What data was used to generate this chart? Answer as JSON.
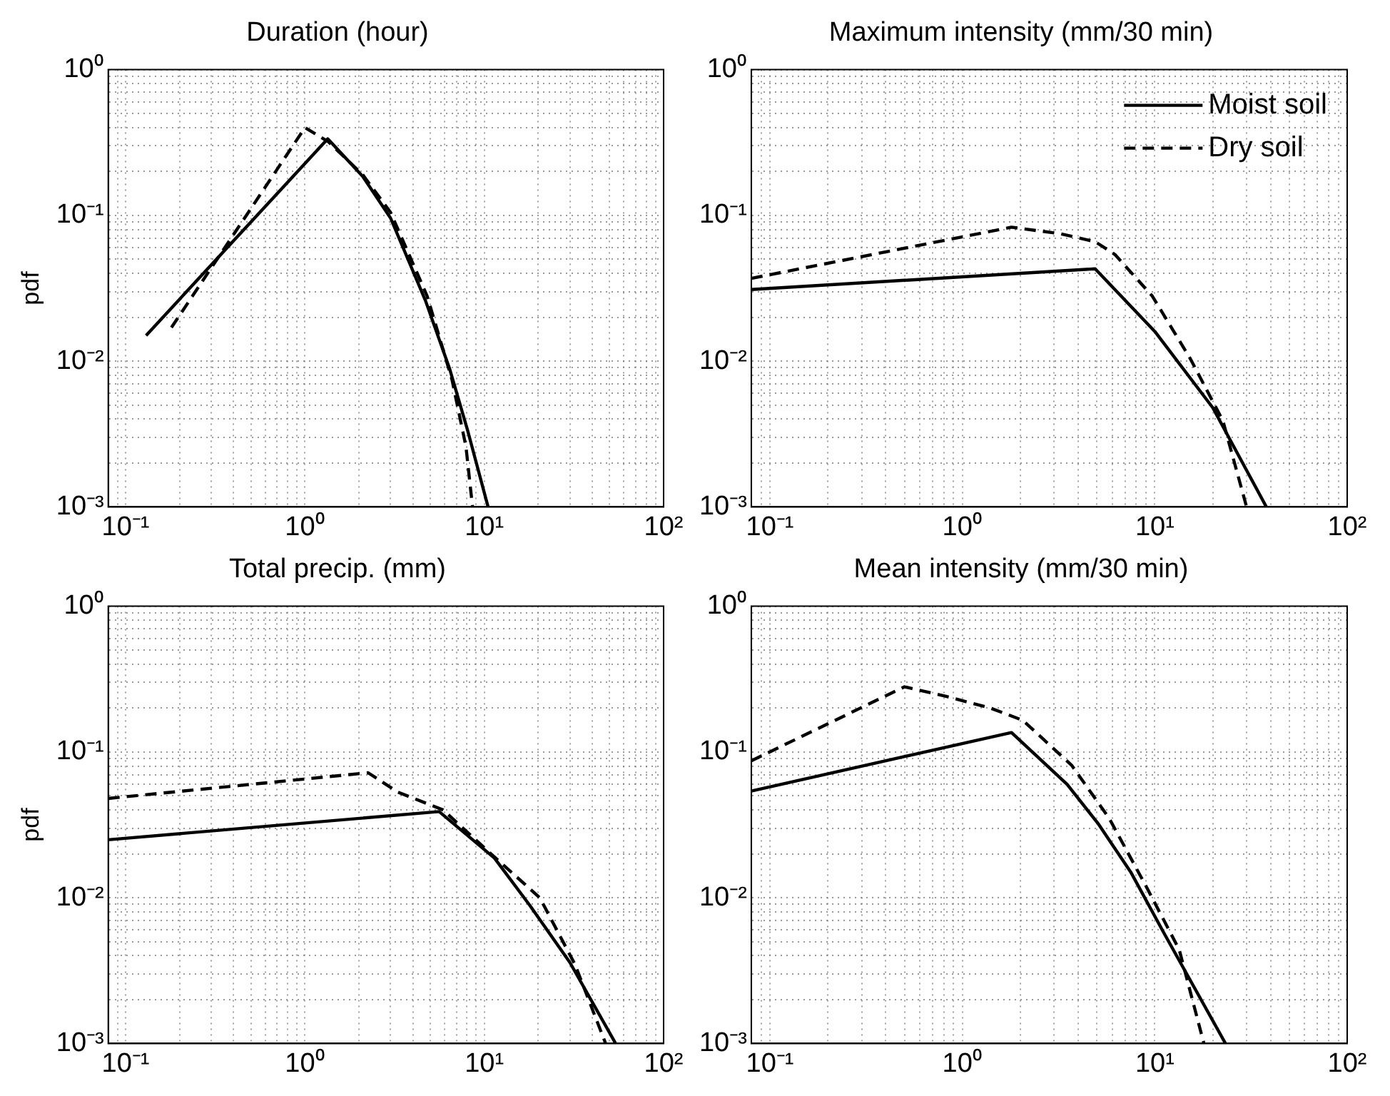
{
  "chart_data": [
    {
      "type": "line",
      "title": "Duration (hour)",
      "ylabel": "pdf",
      "log": "xy",
      "grid": true,
      "marker": "none",
      "legend": false,
      "xlim": [
        0.08,
        100
      ],
      "ylim": [
        0.001,
        1
      ],
      "xticks": [
        {
          "value": 0.09,
          "label": null
        },
        {
          "value": 0.1,
          "label": "10⁻¹"
        },
        {
          "value": 0.2,
          "label": null
        },
        {
          "value": 0.3,
          "label": null
        },
        {
          "value": 0.4,
          "label": null
        },
        {
          "value": 0.5,
          "label": null
        },
        {
          "value": 0.6,
          "label": null
        },
        {
          "value": 0.7,
          "label": null
        },
        {
          "value": 0.8,
          "label": null
        },
        {
          "value": 0.9,
          "label": null
        },
        {
          "value": 1,
          "label": "10⁰"
        },
        {
          "value": 2,
          "label": null
        },
        {
          "value": 3,
          "label": null
        },
        {
          "value": 4,
          "label": null
        },
        {
          "value": 5,
          "label": null
        },
        {
          "value": 6,
          "label": null
        },
        {
          "value": 7,
          "label": null
        },
        {
          "value": 8,
          "label": null
        },
        {
          "value": 9,
          "label": null
        },
        {
          "value": 10,
          "label": "10¹"
        },
        {
          "value": 20,
          "label": null
        },
        {
          "value": 30,
          "label": null
        },
        {
          "value": 40,
          "label": null
        },
        {
          "value": 50,
          "label": null
        },
        {
          "value": 60,
          "label": null
        },
        {
          "value": 70,
          "label": null
        },
        {
          "value": 80,
          "label": null
        },
        {
          "value": 90,
          "label": null
        },
        {
          "value": 100,
          "label": "10²"
        }
      ],
      "yticks": [
        {
          "value": 0.001,
          "label": "10⁻³"
        },
        {
          "value": 0.002,
          "label": null
        },
        {
          "value": 0.003,
          "label": null
        },
        {
          "value": 0.004,
          "label": null
        },
        {
          "value": 0.005,
          "label": null
        },
        {
          "value": 0.006,
          "label": null
        },
        {
          "value": 0.007,
          "label": null
        },
        {
          "value": 0.008,
          "label": null
        },
        {
          "value": 0.009,
          "label": null
        },
        {
          "value": 0.01,
          "label": "10⁻²"
        },
        {
          "value": 0.02,
          "label": null
        },
        {
          "value": 0.03,
          "label": null
        },
        {
          "value": 0.04,
          "label": null
        },
        {
          "value": 0.05,
          "label": null
        },
        {
          "value": 0.06,
          "label": null
        },
        {
          "value": 0.07,
          "label": null
        },
        {
          "value": 0.08,
          "label": null
        },
        {
          "value": 0.09,
          "label": null
        },
        {
          "value": 0.1,
          "label": "10⁻¹"
        },
        {
          "value": 0.2,
          "label": null
        },
        {
          "value": 0.3,
          "label": null
        },
        {
          "value": 0.4,
          "label": null
        },
        {
          "value": 0.5,
          "label": null
        },
        {
          "value": 0.6,
          "label": null
        },
        {
          "value": 0.7,
          "label": null
        },
        {
          "value": 0.8,
          "label": null
        },
        {
          "value": 0.9,
          "label": null
        },
        {
          "value": 1,
          "label": "10⁰"
        }
      ],
      "series": [
        {
          "color": "#000000",
          "line_style": "solid",
          "x": [
            0.13,
            1.34,
            2.1,
            3.0,
            4.7,
            6.4,
            8.1,
            10.5
          ],
          "values": [
            0.015,
            0.335,
            0.185,
            0.096,
            0.026,
            0.0089,
            0.0033,
            0.001
          ]
        },
        {
          "color": "#000000",
          "line_style": "dashed",
          "x": [
            0.18,
            1.0,
            1.35,
            2.1,
            3.0,
            4.8,
            6.6,
            7.9,
            8.6
          ],
          "values": [
            0.017,
            0.4,
            0.32,
            0.19,
            0.105,
            0.028,
            0.0075,
            0.0026,
            0.001
          ]
        }
      ]
    },
    {
      "type": "line",
      "title": "Maximum intensity (mm/30 min)",
      "log": "xy",
      "grid": true,
      "marker": "none",
      "legend": "top right",
      "xlim": [
        0.08,
        100
      ],
      "ylim": [
        0.001,
        1
      ],
      "xticks": [
        {
          "value": 0.09,
          "label": null
        },
        {
          "value": 0.1,
          "label": "10⁻¹"
        },
        {
          "value": 0.2,
          "label": null
        },
        {
          "value": 0.3,
          "label": null
        },
        {
          "value": 0.4,
          "label": null
        },
        {
          "value": 0.5,
          "label": null
        },
        {
          "value": 0.6,
          "label": null
        },
        {
          "value": 0.7,
          "label": null
        },
        {
          "value": 0.8,
          "label": null
        },
        {
          "value": 0.9,
          "label": null
        },
        {
          "value": 1,
          "label": "10⁰"
        },
        {
          "value": 2,
          "label": null
        },
        {
          "value": 3,
          "label": null
        },
        {
          "value": 4,
          "label": null
        },
        {
          "value": 5,
          "label": null
        },
        {
          "value": 6,
          "label": null
        },
        {
          "value": 7,
          "label": null
        },
        {
          "value": 8,
          "label": null
        },
        {
          "value": 9,
          "label": null
        },
        {
          "value": 10,
          "label": "10¹"
        },
        {
          "value": 20,
          "label": null
        },
        {
          "value": 30,
          "label": null
        },
        {
          "value": 40,
          "label": null
        },
        {
          "value": 50,
          "label": null
        },
        {
          "value": 60,
          "label": null
        },
        {
          "value": 70,
          "label": null
        },
        {
          "value": 80,
          "label": null
        },
        {
          "value": 90,
          "label": null
        },
        {
          "value": 100,
          "label": "10²"
        }
      ],
      "yticks": [
        {
          "value": 0.001,
          "label": "10⁻³"
        },
        {
          "value": 0.002,
          "label": null
        },
        {
          "value": 0.003,
          "label": null
        },
        {
          "value": 0.004,
          "label": null
        },
        {
          "value": 0.005,
          "label": null
        },
        {
          "value": 0.006,
          "label": null
        },
        {
          "value": 0.007,
          "label": null
        },
        {
          "value": 0.008,
          "label": null
        },
        {
          "value": 0.009,
          "label": null
        },
        {
          "value": 0.01,
          "label": "10⁻²"
        },
        {
          "value": 0.02,
          "label": null
        },
        {
          "value": 0.03,
          "label": null
        },
        {
          "value": 0.04,
          "label": null
        },
        {
          "value": 0.05,
          "label": null
        },
        {
          "value": 0.06,
          "label": null
        },
        {
          "value": 0.07,
          "label": null
        },
        {
          "value": 0.08,
          "label": null
        },
        {
          "value": 0.09,
          "label": null
        },
        {
          "value": 0.1,
          "label": "10⁻¹"
        },
        {
          "value": 0.2,
          "label": null
        },
        {
          "value": 0.3,
          "label": null
        },
        {
          "value": 0.4,
          "label": null
        },
        {
          "value": 0.5,
          "label": null
        },
        {
          "value": 0.6,
          "label": null
        },
        {
          "value": 0.7,
          "label": null
        },
        {
          "value": 0.8,
          "label": null
        },
        {
          "value": 0.9,
          "label": null
        },
        {
          "value": 1,
          "label": "10⁰"
        }
      ],
      "series": [
        {
          "name": "Moist soil",
          "color": "#000000",
          "line_style": "solid",
          "x": [
            0.08,
            4.9,
            10,
            20,
            38
          ],
          "values": [
            0.031,
            0.043,
            0.016,
            0.0048,
            0.001
          ]
        },
        {
          "name": "Dry soil",
          "color": "#000000",
          "line_style": "dashed",
          "x": [
            0.08,
            1.8,
            3.2,
            4.9,
            6.2,
            9.7,
            15.3,
            22.6,
            30
          ],
          "values": [
            0.037,
            0.083,
            0.075,
            0.066,
            0.054,
            0.028,
            0.0104,
            0.0039,
            0.001
          ]
        }
      ]
    },
    {
      "type": "line",
      "title": "Total precip. (mm)",
      "ylabel": "pdf",
      "log": "xy",
      "grid": true,
      "marker": "none",
      "legend": false,
      "xlim": [
        0.08,
        100
      ],
      "ylim": [
        0.001,
        1
      ],
      "xticks": [
        {
          "value": 0.09,
          "label": null
        },
        {
          "value": 0.1,
          "label": "10⁻¹"
        },
        {
          "value": 0.2,
          "label": null
        },
        {
          "value": 0.3,
          "label": null
        },
        {
          "value": 0.4,
          "label": null
        },
        {
          "value": 0.5,
          "label": null
        },
        {
          "value": 0.6,
          "label": null
        },
        {
          "value": 0.7,
          "label": null
        },
        {
          "value": 0.8,
          "label": null
        },
        {
          "value": 0.9,
          "label": null
        },
        {
          "value": 1,
          "label": "10⁰"
        },
        {
          "value": 2,
          "label": null
        },
        {
          "value": 3,
          "label": null
        },
        {
          "value": 4,
          "label": null
        },
        {
          "value": 5,
          "label": null
        },
        {
          "value": 6,
          "label": null
        },
        {
          "value": 7,
          "label": null
        },
        {
          "value": 8,
          "label": null
        },
        {
          "value": 9,
          "label": null
        },
        {
          "value": 10,
          "label": "10¹"
        },
        {
          "value": 20,
          "label": null
        },
        {
          "value": 30,
          "label": null
        },
        {
          "value": 40,
          "label": null
        },
        {
          "value": 50,
          "label": null
        },
        {
          "value": 60,
          "label": null
        },
        {
          "value": 70,
          "label": null
        },
        {
          "value": 80,
          "label": null
        },
        {
          "value": 90,
          "label": null
        },
        {
          "value": 100,
          "label": "10²"
        }
      ],
      "yticks": [
        {
          "value": 0.001,
          "label": "10⁻³"
        },
        {
          "value": 0.002,
          "label": null
        },
        {
          "value": 0.003,
          "label": null
        },
        {
          "value": 0.004,
          "label": null
        },
        {
          "value": 0.005,
          "label": null
        },
        {
          "value": 0.006,
          "label": null
        },
        {
          "value": 0.007,
          "label": null
        },
        {
          "value": 0.008,
          "label": null
        },
        {
          "value": 0.009,
          "label": null
        },
        {
          "value": 0.01,
          "label": "10⁻²"
        },
        {
          "value": 0.02,
          "label": null
        },
        {
          "value": 0.03,
          "label": null
        },
        {
          "value": 0.04,
          "label": null
        },
        {
          "value": 0.05,
          "label": null
        },
        {
          "value": 0.06,
          "label": null
        },
        {
          "value": 0.07,
          "label": null
        },
        {
          "value": 0.08,
          "label": null
        },
        {
          "value": 0.09,
          "label": null
        },
        {
          "value": 0.1,
          "label": "10⁻¹"
        },
        {
          "value": 0.2,
          "label": null
        },
        {
          "value": 0.3,
          "label": null
        },
        {
          "value": 0.4,
          "label": null
        },
        {
          "value": 0.5,
          "label": null
        },
        {
          "value": 0.6,
          "label": null
        },
        {
          "value": 0.7,
          "label": null
        },
        {
          "value": 0.8,
          "label": null
        },
        {
          "value": 0.9,
          "label": null
        },
        {
          "value": 1,
          "label": "10⁰"
        }
      ],
      "series": [
        {
          "color": "#000000",
          "line_style": "solid",
          "x": [
            0.08,
            5.6,
            11.4,
            17.9,
            30,
            54
          ],
          "values": [
            0.025,
            0.039,
            0.0187,
            0.0089,
            0.0036,
            0.001
          ]
        },
        {
          "color": "#000000",
          "line_style": "dashed",
          "x": [
            0.08,
            2.25,
            3.3,
            5.9,
            10.7,
            20.4,
            32,
            47.5
          ],
          "values": [
            0.048,
            0.072,
            0.053,
            0.04,
            0.0204,
            0.01,
            0.0035,
            0.001
          ]
        }
      ]
    },
    {
      "type": "line",
      "title": "Mean intensity (mm/30 min)",
      "log": "xy",
      "grid": true,
      "marker": "none",
      "legend": false,
      "xlim": [
        0.08,
        100
      ],
      "ylim": [
        0.001,
        1
      ],
      "xticks": [
        {
          "value": 0.09,
          "label": null
        },
        {
          "value": 0.1,
          "label": "10⁻¹"
        },
        {
          "value": 0.2,
          "label": null
        },
        {
          "value": 0.3,
          "label": null
        },
        {
          "value": 0.4,
          "label": null
        },
        {
          "value": 0.5,
          "label": null
        },
        {
          "value": 0.6,
          "label": null
        },
        {
          "value": 0.7,
          "label": null
        },
        {
          "value": 0.8,
          "label": null
        },
        {
          "value": 0.9,
          "label": null
        },
        {
          "value": 1,
          "label": "10⁰"
        },
        {
          "value": 2,
          "label": null
        },
        {
          "value": 3,
          "label": null
        },
        {
          "value": 4,
          "label": null
        },
        {
          "value": 5,
          "label": null
        },
        {
          "value": 6,
          "label": null
        },
        {
          "value": 7,
          "label": null
        },
        {
          "value": 8,
          "label": null
        },
        {
          "value": 9,
          "label": null
        },
        {
          "value": 10,
          "label": "10¹"
        },
        {
          "value": 20,
          "label": null
        },
        {
          "value": 30,
          "label": null
        },
        {
          "value": 40,
          "label": null
        },
        {
          "value": 50,
          "label": null
        },
        {
          "value": 60,
          "label": null
        },
        {
          "value": 70,
          "label": null
        },
        {
          "value": 80,
          "label": null
        },
        {
          "value": 90,
          "label": null
        },
        {
          "value": 100,
          "label": "10²"
        }
      ],
      "yticks": [
        {
          "value": 0.001,
          "label": "10⁻³"
        },
        {
          "value": 0.002,
          "label": null
        },
        {
          "value": 0.003,
          "label": null
        },
        {
          "value": 0.004,
          "label": null
        },
        {
          "value": 0.005,
          "label": null
        },
        {
          "value": 0.006,
          "label": null
        },
        {
          "value": 0.007,
          "label": null
        },
        {
          "value": 0.008,
          "label": null
        },
        {
          "value": 0.009,
          "label": null
        },
        {
          "value": 0.01,
          "label": "10⁻²"
        },
        {
          "value": 0.02,
          "label": null
        },
        {
          "value": 0.03,
          "label": null
        },
        {
          "value": 0.04,
          "label": null
        },
        {
          "value": 0.05,
          "label": null
        },
        {
          "value": 0.06,
          "label": null
        },
        {
          "value": 0.07,
          "label": null
        },
        {
          "value": 0.08,
          "label": null
        },
        {
          "value": 0.09,
          "label": null
        },
        {
          "value": 0.1,
          "label": "10⁻¹"
        },
        {
          "value": 0.2,
          "label": null
        },
        {
          "value": 0.3,
          "label": null
        },
        {
          "value": 0.4,
          "label": null
        },
        {
          "value": 0.5,
          "label": null
        },
        {
          "value": 0.6,
          "label": null
        },
        {
          "value": 0.7,
          "label": null
        },
        {
          "value": 0.8,
          "label": null
        },
        {
          "value": 0.9,
          "label": null
        },
        {
          "value": 1,
          "label": "10⁰"
        }
      ],
      "series": [
        {
          "color": "#000000",
          "line_style": "solid",
          "x": [
            0.08,
            1.8,
            3.5,
            5.1,
            7.5,
            11.1,
            23.3
          ],
          "values": [
            0.054,
            0.136,
            0.06,
            0.032,
            0.015,
            0.0058,
            0.001
          ]
        },
        {
          "color": "#000000",
          "line_style": "dashed",
          "x": [
            0.08,
            0.5,
            0.83,
            1.4,
            2.06,
            3.7,
            5.8,
            9.1,
            13.4,
            18
          ],
          "values": [
            0.087,
            0.28,
            0.24,
            0.2,
            0.165,
            0.081,
            0.035,
            0.0117,
            0.0044,
            0.001
          ]
        }
      ]
    }
  ]
}
